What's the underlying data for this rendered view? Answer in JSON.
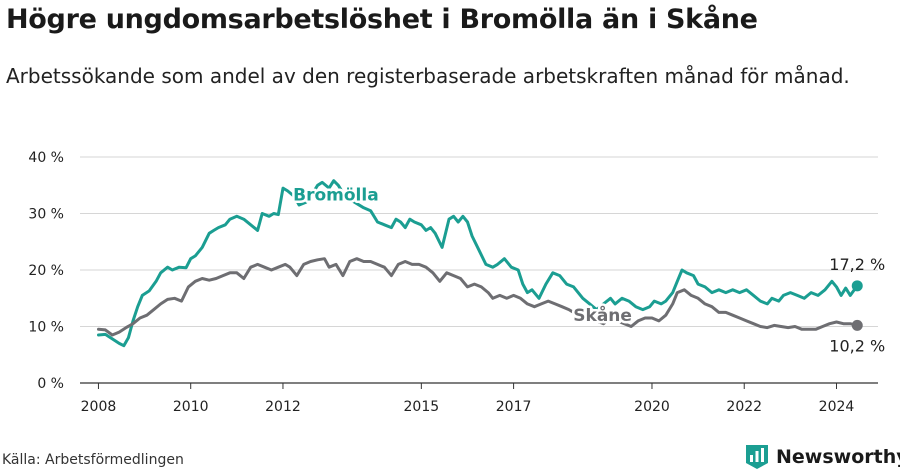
{
  "title": "Högre ungdomsarbetslöshet i Bromölla än i Skåne",
  "subtitle": "Arbetssökande som andel av den registerbaserade arbetskraften månad för månad.",
  "source": "Källa: Arbetsförmedlingen",
  "brand": "Newsworthy",
  "colors": {
    "bromolla": "#1b9e92",
    "skane": "#6e6e72",
    "grid": "#d6d6d6",
    "axis": "#333333"
  },
  "chart_data": {
    "type": "line",
    "title": "Högre ungdomsarbetslöshet i Bromölla än i Skåne",
    "subtitle": "Arbetssökande som andel av den registerbaserade arbetskraften månad för månad.",
    "xlabel": "",
    "ylabel": "",
    "xlim": [
      2007.6,
      2024.9
    ],
    "ylim": [
      0,
      40
    ],
    "y_ticks": [
      0,
      10,
      20,
      30,
      40
    ],
    "y_tick_labels": [
      "0 %",
      "10 %",
      "20 %",
      "30 %",
      "40 %"
    ],
    "x_ticks": [
      2008,
      2010,
      2012,
      2015,
      2017,
      2020,
      2022,
      2024
    ],
    "x_tick_labels": [
      "2008",
      "2010",
      "2012",
      "2015",
      "2017",
      "2020",
      "2022",
      "2024"
    ],
    "grid": true,
    "legend": "direct labels on lines",
    "series": [
      {
        "name": "Bromölla",
        "color": "#1b9e92",
        "end_label": "17,2 %",
        "points": [
          [
            2008.0,
            8.5
          ],
          [
            2008.15,
            8.6
          ],
          [
            2008.3,
            7.8
          ],
          [
            2008.45,
            7.0
          ],
          [
            2008.55,
            6.6
          ],
          [
            2008.65,
            8.0
          ],
          [
            2008.75,
            11.0
          ],
          [
            2008.85,
            13.5
          ],
          [
            2008.95,
            15.5
          ],
          [
            2009.1,
            16.3
          ],
          [
            2009.25,
            18.0
          ],
          [
            2009.35,
            19.5
          ],
          [
            2009.5,
            20.5
          ],
          [
            2009.6,
            20.0
          ],
          [
            2009.75,
            20.5
          ],
          [
            2009.9,
            20.4
          ],
          [
            2010.0,
            22.0
          ],
          [
            2010.1,
            22.5
          ],
          [
            2010.25,
            24.0
          ],
          [
            2010.4,
            26.5
          ],
          [
            2010.5,
            27.0
          ],
          [
            2010.6,
            27.5
          ],
          [
            2010.75,
            28.0
          ],
          [
            2010.85,
            29.0
          ],
          [
            2011.0,
            29.5
          ],
          [
            2011.15,
            29.0
          ],
          [
            2011.3,
            28.0
          ],
          [
            2011.45,
            27.0
          ],
          [
            2011.55,
            30.0
          ],
          [
            2011.7,
            29.5
          ],
          [
            2011.8,
            30.0
          ],
          [
            2011.9,
            29.8
          ],
          [
            2012.0,
            34.5
          ],
          [
            2012.1,
            34.0
          ],
          [
            2012.25,
            33.0
          ],
          [
            2012.35,
            31.5
          ],
          [
            2012.5,
            32.0
          ],
          [
            2012.6,
            33.0
          ],
          [
            2012.75,
            35.0
          ],
          [
            2012.85,
            35.5
          ],
          [
            2013.0,
            34.5
          ],
          [
            2013.1,
            35.8
          ],
          [
            2013.2,
            35.0
          ],
          [
            2013.35,
            33.0
          ],
          [
            2013.45,
            32.5
          ],
          [
            2013.55,
            32.0
          ],
          [
            2013.75,
            31.0
          ],
          [
            2013.9,
            30.5
          ],
          [
            2014.05,
            28.5
          ],
          [
            2014.2,
            28.0
          ],
          [
            2014.35,
            27.5
          ],
          [
            2014.45,
            29.0
          ],
          [
            2014.55,
            28.5
          ],
          [
            2014.65,
            27.5
          ],
          [
            2014.75,
            29.0
          ],
          [
            2014.85,
            28.5
          ],
          [
            2015.0,
            28.0
          ],
          [
            2015.1,
            27.0
          ],
          [
            2015.2,
            27.5
          ],
          [
            2015.3,
            26.5
          ],
          [
            2015.45,
            24.0
          ],
          [
            2015.6,
            29.0
          ],
          [
            2015.7,
            29.5
          ],
          [
            2015.8,
            28.5
          ],
          [
            2015.9,
            29.5
          ],
          [
            2016.0,
            28.5
          ],
          [
            2016.1,
            26.0
          ],
          [
            2016.25,
            23.5
          ],
          [
            2016.4,
            21.0
          ],
          [
            2016.55,
            20.5
          ],
          [
            2016.65,
            21.0
          ],
          [
            2016.8,
            22.0
          ],
          [
            2016.95,
            20.5
          ],
          [
            2017.1,
            20.0
          ],
          [
            2017.2,
            17.5
          ],
          [
            2017.3,
            16.0
          ],
          [
            2017.4,
            16.5
          ],
          [
            2017.55,
            15.0
          ],
          [
            2017.7,
            17.5
          ],
          [
            2017.85,
            19.5
          ],
          [
            2018.0,
            19.0
          ],
          [
            2018.15,
            17.5
          ],
          [
            2018.3,
            17.0
          ],
          [
            2018.5,
            15.0
          ],
          [
            2018.65,
            14.0
          ],
          [
            2018.8,
            13.0
          ],
          [
            2018.95,
            14.0
          ],
          [
            2019.1,
            15.0
          ],
          [
            2019.2,
            14.0
          ],
          [
            2019.35,
            15.0
          ],
          [
            2019.5,
            14.5
          ],
          [
            2019.65,
            13.5
          ],
          [
            2019.8,
            13.0
          ],
          [
            2019.95,
            13.5
          ],
          [
            2020.05,
            14.5
          ],
          [
            2020.2,
            14.0
          ],
          [
            2020.3,
            14.5
          ],
          [
            2020.45,
            16.0
          ],
          [
            2020.55,
            18.0
          ],
          [
            2020.65,
            20.0
          ],
          [
            2020.75,
            19.5
          ],
          [
            2020.9,
            19.0
          ],
          [
            2021.0,
            17.5
          ],
          [
            2021.15,
            17.0
          ],
          [
            2021.3,
            16.0
          ],
          [
            2021.45,
            16.5
          ],
          [
            2021.6,
            16.0
          ],
          [
            2021.75,
            16.5
          ],
          [
            2021.9,
            16.0
          ],
          [
            2022.05,
            16.5
          ],
          [
            2022.2,
            15.5
          ],
          [
            2022.35,
            14.5
          ],
          [
            2022.5,
            14.0
          ],
          [
            2022.6,
            15.0
          ],
          [
            2022.75,
            14.5
          ],
          [
            2022.85,
            15.5
          ],
          [
            2023.0,
            16.0
          ],
          [
            2023.15,
            15.5
          ],
          [
            2023.3,
            15.0
          ],
          [
            2023.45,
            16.0
          ],
          [
            2023.6,
            15.5
          ],
          [
            2023.75,
            16.5
          ],
          [
            2023.9,
            18.0
          ],
          [
            2024.0,
            17.0
          ],
          [
            2024.1,
            15.5
          ],
          [
            2024.2,
            16.8
          ],
          [
            2024.3,
            15.5
          ],
          [
            2024.45,
            17.2
          ]
        ]
      },
      {
        "name": "Skåne",
        "color": "#6e6e72",
        "end_label": "10,2 %",
        "points": [
          [
            2008.0,
            9.5
          ],
          [
            2008.15,
            9.4
          ],
          [
            2008.3,
            8.5
          ],
          [
            2008.45,
            9.0
          ],
          [
            2008.6,
            9.8
          ],
          [
            2008.75,
            10.5
          ],
          [
            2008.9,
            11.5
          ],
          [
            2009.05,
            12.0
          ],
          [
            2009.2,
            13.0
          ],
          [
            2009.35,
            14.0
          ],
          [
            2009.5,
            14.8
          ],
          [
            2009.65,
            15.0
          ],
          [
            2009.8,
            14.5
          ],
          [
            2009.95,
            17.0
          ],
          [
            2010.1,
            18.0
          ],
          [
            2010.25,
            18.5
          ],
          [
            2010.4,
            18.2
          ],
          [
            2010.55,
            18.5
          ],
          [
            2010.7,
            19.0
          ],
          [
            2010.85,
            19.5
          ],
          [
            2011.0,
            19.5
          ],
          [
            2011.15,
            18.5
          ],
          [
            2011.3,
            20.5
          ],
          [
            2011.45,
            21.0
          ],
          [
            2011.6,
            20.5
          ],
          [
            2011.75,
            20.0
          ],
          [
            2011.9,
            20.5
          ],
          [
            2012.05,
            21.0
          ],
          [
            2012.15,
            20.5
          ],
          [
            2012.3,
            19.0
          ],
          [
            2012.45,
            21.0
          ],
          [
            2012.6,
            21.5
          ],
          [
            2012.75,
            21.8
          ],
          [
            2012.9,
            22.0
          ],
          [
            2013.0,
            20.5
          ],
          [
            2013.15,
            21.0
          ],
          [
            2013.3,
            19.0
          ],
          [
            2013.45,
            21.5
          ],
          [
            2013.6,
            22.0
          ],
          [
            2013.75,
            21.5
          ],
          [
            2013.9,
            21.5
          ],
          [
            2014.05,
            21.0
          ],
          [
            2014.2,
            20.5
          ],
          [
            2014.35,
            19.0
          ],
          [
            2014.5,
            21.0
          ],
          [
            2014.65,
            21.5
          ],
          [
            2014.8,
            21.0
          ],
          [
            2014.95,
            21.0
          ],
          [
            2015.1,
            20.5
          ],
          [
            2015.25,
            19.5
          ],
          [
            2015.4,
            18.0
          ],
          [
            2015.55,
            19.5
          ],
          [
            2015.7,
            19.0
          ],
          [
            2015.85,
            18.5
          ],
          [
            2016.0,
            17.0
          ],
          [
            2016.15,
            17.5
          ],
          [
            2016.3,
            17.0
          ],
          [
            2016.45,
            16.0
          ],
          [
            2016.55,
            15.0
          ],
          [
            2016.7,
            15.5
          ],
          [
            2016.85,
            15.0
          ],
          [
            2017.0,
            15.5
          ],
          [
            2017.15,
            15.0
          ],
          [
            2017.3,
            14.0
          ],
          [
            2017.45,
            13.5
          ],
          [
            2017.6,
            14.0
          ],
          [
            2017.75,
            14.5
          ],
          [
            2017.9,
            14.0
          ],
          [
            2018.05,
            13.5
          ],
          [
            2018.2,
            13.0
          ],
          [
            2018.4,
            12.0
          ],
          [
            2018.6,
            11.5
          ],
          [
            2018.8,
            11.0
          ],
          [
            2018.95,
            10.5
          ],
          [
            2019.1,
            11.5
          ],
          [
            2019.25,
            11.0
          ],
          [
            2019.4,
            10.5
          ],
          [
            2019.55,
            10.0
          ],
          [
            2019.7,
            11.0
          ],
          [
            2019.85,
            11.5
          ],
          [
            2020.0,
            11.5
          ],
          [
            2020.15,
            11.0
          ],
          [
            2020.3,
            12.0
          ],
          [
            2020.45,
            14.0
          ],
          [
            2020.55,
            16.0
          ],
          [
            2020.7,
            16.5
          ],
          [
            2020.85,
            15.5
          ],
          [
            2021.0,
            15.0
          ],
          [
            2021.15,
            14.0
          ],
          [
            2021.3,
            13.5
          ],
          [
            2021.45,
            12.5
          ],
          [
            2021.6,
            12.5
          ],
          [
            2021.75,
            12.0
          ],
          [
            2021.9,
            11.5
          ],
          [
            2022.05,
            11.0
          ],
          [
            2022.2,
            10.5
          ],
          [
            2022.35,
            10.0
          ],
          [
            2022.5,
            9.8
          ],
          [
            2022.65,
            10.2
          ],
          [
            2022.8,
            10.0
          ],
          [
            2022.95,
            9.8
          ],
          [
            2023.1,
            10.0
          ],
          [
            2023.25,
            9.5
          ],
          [
            2023.4,
            9.5
          ],
          [
            2023.55,
            9.5
          ],
          [
            2023.7,
            10.0
          ],
          [
            2023.85,
            10.5
          ],
          [
            2024.0,
            10.8
          ],
          [
            2024.15,
            10.5
          ],
          [
            2024.3,
            10.5
          ],
          [
            2024.45,
            10.2
          ]
        ]
      }
    ]
  }
}
